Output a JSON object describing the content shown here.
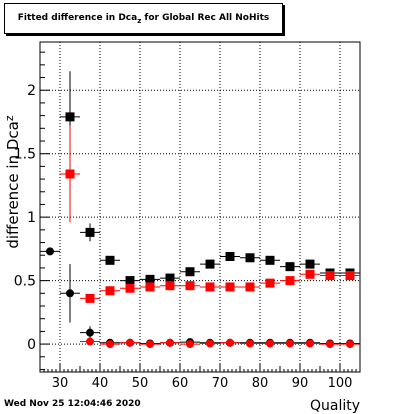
{
  "title": {
    "prefix": "Fitted difference in Dca",
    "subscript": "z",
    "suffix": " for Global Rec All NoHits"
  },
  "timestamp": "Wed Nov 25 12:04:46 2020",
  "chart_data": {
    "type": "scatter",
    "xlabel": "Quality",
    "ylabel": "difference in Dca",
    "ylabel_subscript": "z",
    "xlim": [
      25,
      105
    ],
    "ylim": [
      -0.22,
      2.38
    ],
    "x_ticks": [
      30,
      40,
      50,
      60,
      70,
      80,
      90,
      100
    ],
    "y_ticks": [
      0,
      0.5,
      1,
      1.5,
      2
    ],
    "grid": true,
    "series": [
      {
        "marker": "circle",
        "color": "#000000",
        "points": [
          {
            "x": 27.5,
            "y": 0.73,
            "xerr": 2.5,
            "yerr": 0
          },
          {
            "x": 32.5,
            "y": 0.4,
            "xerr": 2.5,
            "yerr": 0.23
          },
          {
            "x": 37.5,
            "y": 0.09,
            "xerr": 2.5,
            "yerr": 0.05
          },
          {
            "x": 42.5,
            "y": 0.01,
            "xerr": 2.5,
            "yerr": 0.01
          },
          {
            "x": 47.5,
            "y": 0.01,
            "xerr": 2.5,
            "yerr": 0.01
          },
          {
            "x": 52.5,
            "y": 0.005,
            "xerr": 2.5,
            "yerr": 0.01
          },
          {
            "x": 57.5,
            "y": 0.01,
            "xerr": 2.5,
            "yerr": 0.01
          },
          {
            "x": 62.5,
            "y": 0.015,
            "xerr": 2.5,
            "yerr": 0.01
          },
          {
            "x": 67.5,
            "y": 0.01,
            "xerr": 2.5,
            "yerr": 0.01
          },
          {
            "x": 72.5,
            "y": 0.01,
            "xerr": 2.5,
            "yerr": 0.01
          },
          {
            "x": 77.5,
            "y": 0.01,
            "xerr": 2.5,
            "yerr": 0.01
          },
          {
            "x": 82.5,
            "y": 0.01,
            "xerr": 2.5,
            "yerr": 0.01
          },
          {
            "x": 87.5,
            "y": 0.01,
            "xerr": 2.5,
            "yerr": 0.01
          },
          {
            "x": 92.5,
            "y": 0.01,
            "xerr": 2.5,
            "yerr": 0.01
          },
          {
            "x": 97.5,
            "y": 0.005,
            "xerr": 2.5,
            "yerr": 0.01
          },
          {
            "x": 102.5,
            "y": 0.005,
            "xerr": 2.5,
            "yerr": 0.01
          }
        ]
      },
      {
        "marker": "circle",
        "color": "#ff0000",
        "points": [
          {
            "x": 37.5,
            "y": 0.02,
            "xerr": 2.5,
            "yerr": 0.02
          },
          {
            "x": 42.5,
            "y": 0.0,
            "xerr": 2.5,
            "yerr": 0.01
          },
          {
            "x": 47.5,
            "y": 0.01,
            "xerr": 2.5,
            "yerr": 0.01
          },
          {
            "x": 52.5,
            "y": 0.0,
            "xerr": 2.5,
            "yerr": 0.01
          },
          {
            "x": 57.5,
            "y": 0.01,
            "xerr": 2.5,
            "yerr": 0.01
          },
          {
            "x": 62.5,
            "y": 0.0,
            "xerr": 2.5,
            "yerr": 0.01
          },
          {
            "x": 67.5,
            "y": 0.005,
            "xerr": 2.5,
            "yerr": 0.01
          },
          {
            "x": 72.5,
            "y": 0.01,
            "xerr": 2.5,
            "yerr": 0.01
          },
          {
            "x": 77.5,
            "y": 0.005,
            "xerr": 2.5,
            "yerr": 0.01
          },
          {
            "x": 82.5,
            "y": 0.005,
            "xerr": 2.5,
            "yerr": 0.01
          },
          {
            "x": 87.5,
            "y": 0.005,
            "xerr": 2.5,
            "yerr": 0.01
          },
          {
            "x": 92.5,
            "y": 0.005,
            "xerr": 2.5,
            "yerr": 0.01
          },
          {
            "x": 97.5,
            "y": 0.0,
            "xerr": 2.5,
            "yerr": 0.01
          },
          {
            "x": 102.5,
            "y": 0.0,
            "xerr": 2.5,
            "yerr": 0.01
          }
        ]
      },
      {
        "marker": "square",
        "color": "#000000",
        "points": [
          {
            "x": 32.5,
            "y": 1.79,
            "xerr": 2.5,
            "yerr": 0.36
          },
          {
            "x": 37.5,
            "y": 0.88,
            "xerr": 2.5,
            "yerr": 0.07
          },
          {
            "x": 42.5,
            "y": 0.66,
            "xerr": 2.5,
            "yerr": 0.03
          },
          {
            "x": 47.5,
            "y": 0.5,
            "xerr": 2.5,
            "yerr": 0.02
          },
          {
            "x": 52.5,
            "y": 0.51,
            "xerr": 2.5,
            "yerr": 0.02
          },
          {
            "x": 57.5,
            "y": 0.52,
            "xerr": 2.5,
            "yerr": 0.02
          },
          {
            "x": 62.5,
            "y": 0.57,
            "xerr": 2.5,
            "yerr": 0.02
          },
          {
            "x": 67.5,
            "y": 0.63,
            "xerr": 2.5,
            "yerr": 0.02
          },
          {
            "x": 72.5,
            "y": 0.69,
            "xerr": 2.5,
            "yerr": 0.02
          },
          {
            "x": 77.5,
            "y": 0.68,
            "xerr": 2.5,
            "yerr": 0.02
          },
          {
            "x": 82.5,
            "y": 0.66,
            "xerr": 2.5,
            "yerr": 0.02
          },
          {
            "x": 87.5,
            "y": 0.61,
            "xerr": 2.5,
            "yerr": 0.02
          },
          {
            "x": 92.5,
            "y": 0.63,
            "xerr": 2.5,
            "yerr": 0.02
          },
          {
            "x": 97.5,
            "y": 0.56,
            "xerr": 2.5,
            "yerr": 0.02
          },
          {
            "x": 102.5,
            "y": 0.56,
            "xerr": 2.5,
            "yerr": 0.02
          }
        ]
      },
      {
        "marker": "square",
        "color": "#ff0000",
        "points": [
          {
            "x": 32.5,
            "y": 1.34,
            "xerr": 2.5,
            "yerr": 0.38
          },
          {
            "x": 37.5,
            "y": 0.36,
            "xerr": 2.5,
            "yerr": 0.02
          },
          {
            "x": 42.5,
            "y": 0.42,
            "xerr": 2.5,
            "yerr": 0.02
          },
          {
            "x": 47.5,
            "y": 0.44,
            "xerr": 2.5,
            "yerr": 0.02
          },
          {
            "x": 52.5,
            "y": 0.45,
            "xerr": 2.5,
            "yerr": 0.02
          },
          {
            "x": 57.5,
            "y": 0.46,
            "xerr": 2.5,
            "yerr": 0.02
          },
          {
            "x": 62.5,
            "y": 0.46,
            "xerr": 2.5,
            "yerr": 0.02
          },
          {
            "x": 67.5,
            "y": 0.45,
            "xerr": 2.5,
            "yerr": 0.02
          },
          {
            "x": 72.5,
            "y": 0.45,
            "xerr": 2.5,
            "yerr": 0.02
          },
          {
            "x": 77.5,
            "y": 0.45,
            "xerr": 2.5,
            "yerr": 0.02
          },
          {
            "x": 82.5,
            "y": 0.48,
            "xerr": 2.5,
            "yerr": 0.02
          },
          {
            "x": 87.5,
            "y": 0.5,
            "xerr": 2.5,
            "yerr": 0.02
          },
          {
            "x": 92.5,
            "y": 0.55,
            "xerr": 2.5,
            "yerr": 0.02
          },
          {
            "x": 97.5,
            "y": 0.54,
            "xerr": 2.5,
            "yerr": 0.02
          },
          {
            "x": 102.5,
            "y": 0.54,
            "xerr": 2.5,
            "yerr": 0.02
          }
        ]
      }
    ]
  }
}
